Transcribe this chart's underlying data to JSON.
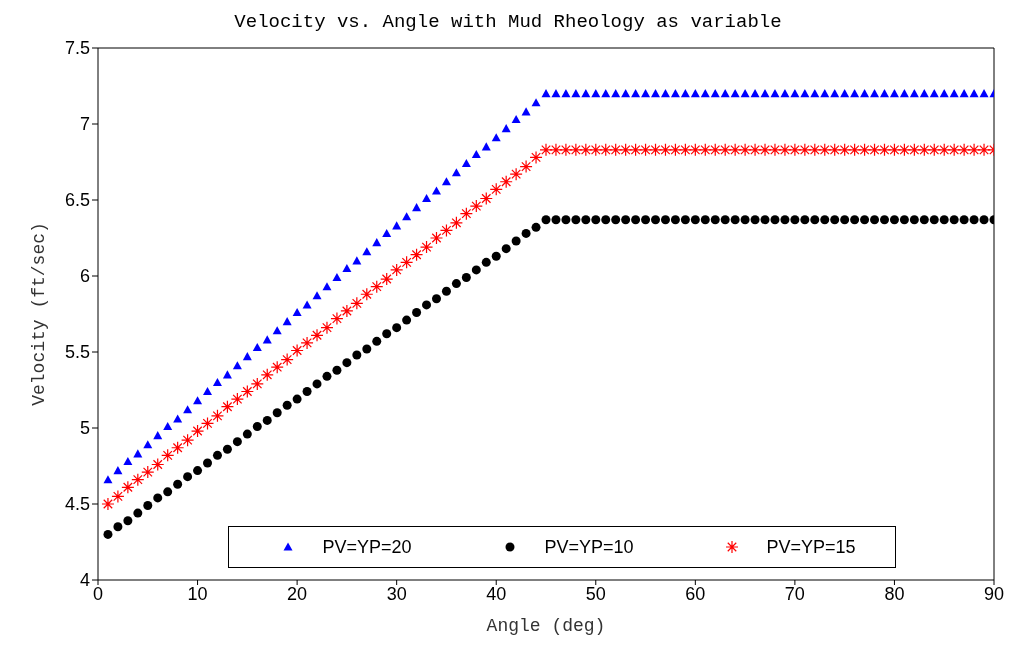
{
  "chart_data": {
    "type": "scatter",
    "title": "Velocity vs. Angle with Mud Rheology as variable",
    "xlabel": "Angle (deg)",
    "ylabel": "Velocity (ft/sec)",
    "x": [
      1,
      2,
      3,
      4,
      5,
      6,
      7,
      8,
      9,
      10,
      11,
      12,
      13,
      14,
      15,
      16,
      17,
      18,
      19,
      20,
      21,
      22,
      23,
      24,
      25,
      26,
      27,
      28,
      29,
      30,
      31,
      32,
      33,
      34,
      35,
      36,
      37,
      38,
      39,
      40,
      41,
      42,
      43,
      44,
      45,
      46,
      47,
      48,
      49,
      50,
      51,
      52,
      53,
      54,
      55,
      56,
      57,
      58,
      59,
      60,
      61,
      62,
      63,
      64,
      65,
      66,
      67,
      68,
      69,
      70,
      71,
      72,
      73,
      74,
      75,
      76,
      77,
      78,
      79,
      80,
      81,
      82,
      83,
      84,
      85,
      86,
      87,
      88,
      89,
      90
    ],
    "series": [
      {
        "name": "PV=YP=20",
        "color": "#0000ff",
        "marker": "triangle",
        "values": [
          4.66,
          4.72,
          4.78,
          4.83,
          4.89,
          4.95,
          5.01,
          5.06,
          5.12,
          5.18,
          5.24,
          5.3,
          5.35,
          5.41,
          5.47,
          5.53,
          5.58,
          5.64,
          5.7,
          5.76,
          5.81,
          5.87,
          5.93,
          5.99,
          6.05,
          6.1,
          6.16,
          6.22,
          6.28,
          6.33,
          6.39,
          6.45,
          6.51,
          6.56,
          6.62,
          6.68,
          6.74,
          6.8,
          6.85,
          6.91,
          6.97,
          7.03,
          7.08,
          7.14,
          7.2,
          7.2,
          7.2,
          7.2,
          7.2,
          7.2,
          7.2,
          7.2,
          7.2,
          7.2,
          7.2,
          7.2,
          7.2,
          7.2,
          7.2,
          7.2,
          7.2,
          7.2,
          7.2,
          7.2,
          7.2,
          7.2,
          7.2,
          7.2,
          7.2,
          7.2,
          7.2,
          7.2,
          7.2,
          7.2,
          7.2,
          7.2,
          7.2,
          7.2,
          7.2,
          7.2,
          7.2,
          7.2,
          7.2,
          7.2,
          7.2,
          7.2,
          7.2,
          7.2,
          7.2,
          7.2
        ]
      },
      {
        "name": "PV=YP=10",
        "color": "#000000",
        "marker": "circle",
        "values": [
          4.3,
          4.35,
          4.39,
          4.44,
          4.49,
          4.54,
          4.58,
          4.63,
          4.68,
          4.72,
          4.77,
          4.82,
          4.86,
          4.91,
          4.96,
          5.01,
          5.05,
          5.1,
          5.15,
          5.19,
          5.24,
          5.29,
          5.34,
          5.38,
          5.43,
          5.48,
          5.52,
          5.57,
          5.62,
          5.66,
          5.71,
          5.76,
          5.81,
          5.85,
          5.9,
          5.95,
          5.99,
          6.04,
          6.09,
          6.13,
          6.18,
          6.23,
          6.28,
          6.32,
          6.37,
          6.37,
          6.37,
          6.37,
          6.37,
          6.37,
          6.37,
          6.37,
          6.37,
          6.37,
          6.37,
          6.37,
          6.37,
          6.37,
          6.37,
          6.37,
          6.37,
          6.37,
          6.37,
          6.37,
          6.37,
          6.37,
          6.37,
          6.37,
          6.37,
          6.37,
          6.37,
          6.37,
          6.37,
          6.37,
          6.37,
          6.37,
          6.37,
          6.37,
          6.37,
          6.37,
          6.37,
          6.37,
          6.37,
          6.37,
          6.37,
          6.37,
          6.37,
          6.37,
          6.37,
          6.37
        ]
      },
      {
        "name": "PV=YP=15",
        "color": "#ff0000",
        "marker": "cross",
        "values": [
          4.5,
          4.55,
          4.61,
          4.66,
          4.71,
          4.76,
          4.82,
          4.87,
          4.92,
          4.98,
          5.03,
          5.08,
          5.14,
          5.19,
          5.24,
          5.29,
          5.35,
          5.4,
          5.45,
          5.51,
          5.56,
          5.61,
          5.66,
          5.72,
          5.77,
          5.82,
          5.88,
          5.93,
          5.98,
          6.04,
          6.09,
          6.14,
          6.19,
          6.25,
          6.3,
          6.35,
          6.41,
          6.46,
          6.51,
          6.57,
          6.62,
          6.67,
          6.72,
          6.78,
          6.83,
          6.83,
          6.83,
          6.83,
          6.83,
          6.83,
          6.83,
          6.83,
          6.83,
          6.83,
          6.83,
          6.83,
          6.83,
          6.83,
          6.83,
          6.83,
          6.83,
          6.83,
          6.83,
          6.83,
          6.83,
          6.83,
          6.83,
          6.83,
          6.83,
          6.83,
          6.83,
          6.83,
          6.83,
          6.83,
          6.83,
          6.83,
          6.83,
          6.83,
          6.83,
          6.83,
          6.83,
          6.83,
          6.83,
          6.83,
          6.83,
          6.83,
          6.83,
          6.83,
          6.83,
          6.83
        ]
      }
    ],
    "xlim": [
      0,
      90
    ],
    "xticks": [
      0,
      10,
      20,
      30,
      40,
      50,
      60,
      70,
      80,
      90
    ],
    "ylim": [
      4,
      7.5
    ],
    "yticks": [
      4,
      4.5,
      5,
      5.5,
      6,
      6.5,
      7,
      7.5
    ],
    "grid": false,
    "legend": "bottom"
  }
}
